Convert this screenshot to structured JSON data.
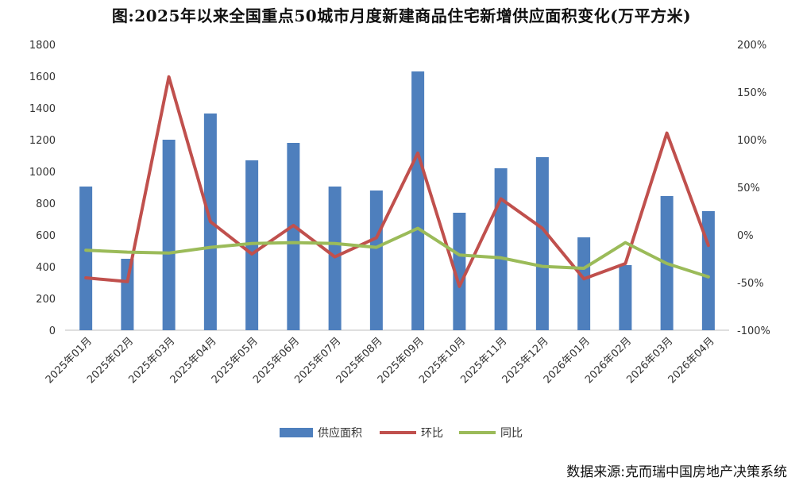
{
  "chart_data": {
    "type": "bar",
    "title": "图:2025年以来全国重点50城市月度新建商品住宅新增供应面积变化(万平方米)",
    "categories": [
      "2025年01月",
      "2025年02月",
      "2025年03月",
      "2025年04月",
      "2025年05月",
      "2025年06月",
      "2025年07月",
      "2025年08月",
      "2025年09月",
      "2025年10月",
      "2025年11月",
      "2025年12月",
      "2026年01月",
      "2026年02月",
      "2026年03月",
      "2026年04月"
    ],
    "y_left": {
      "ticks": [
        "0",
        "200",
        "400",
        "600",
        "800",
        "1000",
        "1200",
        "1400",
        "1600",
        "1800"
      ],
      "ylim": [
        0,
        1800
      ]
    },
    "y_right": {
      "ticks": [
        "-100%",
        "-50%",
        "0%",
        "50%",
        "100%",
        "150%",
        "200%"
      ],
      "ylim": [
        -100,
        200
      ]
    },
    "series": [
      {
        "name": "供应面积",
        "type": "bar",
        "axis": "left",
        "color": "#4e7fbd",
        "values": [
          905,
          450,
          1200,
          1365,
          1070,
          1180,
          905,
          880,
          1630,
          740,
          1020,
          1090,
          585,
          410,
          845,
          750
        ]
      },
      {
        "name": "环比",
        "type": "line",
        "axis": "right",
        "color": "#c0504d",
        "values": [
          -45,
          -49,
          166,
          14,
          -20,
          10,
          -23,
          -3,
          86,
          -54,
          38,
          7,
          -46,
          -30,
          107,
          -11
        ]
      },
      {
        "name": "同比",
        "type": "line",
        "axis": "right",
        "color": "#9bbb59",
        "values": [
          -16,
          -18,
          -19,
          -13,
          -9,
          -8,
          -9,
          -13,
          7,
          -21,
          -24,
          -33,
          -35,
          -8,
          -30,
          -44
        ]
      }
    ],
    "legend_position": "bottom",
    "grid": false
  },
  "source": "数据来源:克而瑞中国房地产决策系统"
}
